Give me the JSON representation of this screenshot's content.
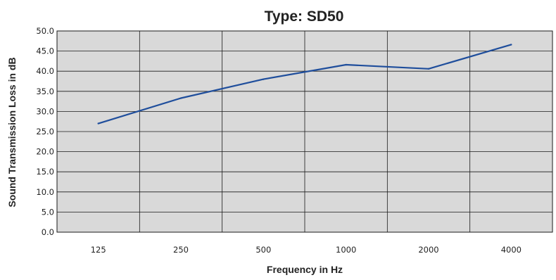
{
  "chart_data": {
    "type": "line",
    "title": "Type: SD50",
    "xlabel": "Frequency in Hz",
    "ylabel": "Sound Transmission Loss in dB",
    "categories": [
      "125",
      "250",
      "500",
      "1000",
      "2000",
      "4000"
    ],
    "series": [
      {
        "values": [
          27.0,
          33.3,
          38.0,
          41.6,
          40.6,
          46.6
        ]
      }
    ],
    "ylim": [
      0,
      50
    ],
    "ytick_step": 5,
    "yticks": [
      "0.0",
      "5.0",
      "10.0",
      "15.0",
      "20.0",
      "25.0",
      "30.0",
      "35.0",
      "40.0",
      "45.0",
      "50.0"
    ],
    "grid": true,
    "legend": "none",
    "colors": {
      "plot_background": "#d9d9d9",
      "line": "#1f4e9c",
      "grid": "#1a1a1a"
    }
  }
}
